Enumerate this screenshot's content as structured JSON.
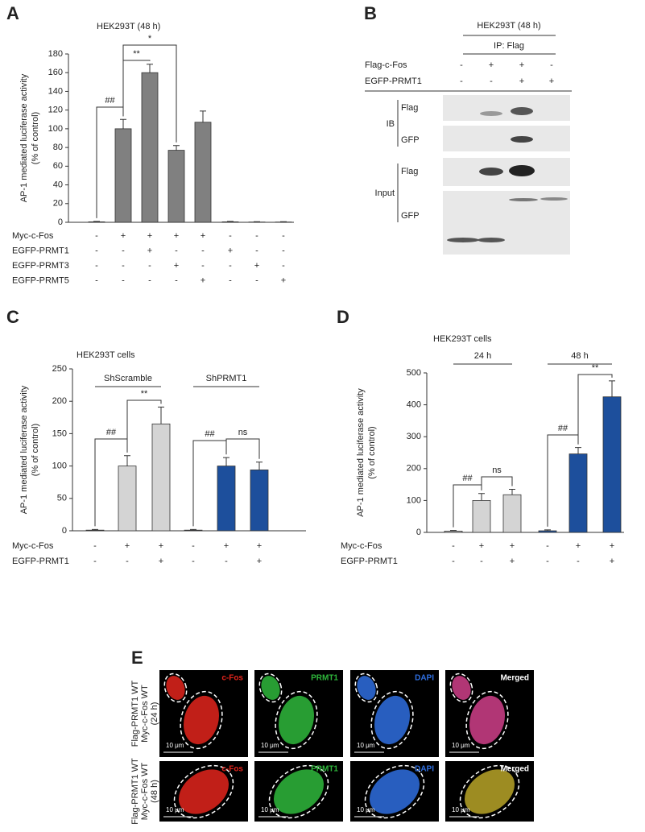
{
  "panel_labels": [
    "A",
    "B",
    "C",
    "D",
    "E"
  ],
  "chart_data": [
    {
      "type": "bar",
      "title": "HEK293T (48 h)",
      "y_label": [
        "AP-1 mediated luciferase activity",
        "(% of control)"
      ],
      "values": [
        0.5,
        100,
        160,
        77,
        107,
        0.5,
        0.3,
        0.3
      ],
      "errors": [
        0.5,
        10,
        9,
        5,
        12,
        0.5,
        0.3,
        0.3
      ],
      "colors": [
        "#808080",
        "#808080",
        "#808080",
        "#808080",
        "#808080",
        "#808080",
        "#808080",
        "#808080"
      ],
      "ylim": [
        0,
        180
      ],
      "yticks": [
        0,
        20,
        40,
        60,
        80,
        100,
        120,
        140,
        160,
        180
      ],
      "treatments": [
        {
          "name": "Myc-c-Fos",
          "signs": [
            "-",
            "+",
            "+",
            "+",
            "+",
            "-",
            "-",
            "-"
          ]
        },
        {
          "name": "EGFP-PRMT1",
          "signs": [
            "-",
            "-",
            "+",
            "-",
            "-",
            "+",
            "-",
            "-"
          ]
        },
        {
          "name": "EGFP-PRMT3",
          "signs": [
            "-",
            "-",
            "-",
            "+",
            "-",
            "-",
            "+",
            "-"
          ]
        },
        {
          "name": "EGFP-PRMT5",
          "signs": [
            "-",
            "-",
            "-",
            "-",
            "+",
            "-",
            "-",
            "+"
          ]
        }
      ],
      "annotations": [
        "##",
        "**",
        "*"
      ],
      "groups": []
    },
    {
      "type": "bar",
      "title": "HEK293T cells",
      "y_label": [
        "AP-1 mediated luciferase activity",
        "(% of control)"
      ],
      "values": [
        1,
        100,
        165,
        1,
        100,
        94
      ],
      "errors": [
        1,
        16,
        26,
        1,
        13,
        12
      ],
      "colors": [
        "#d4d4d4",
        "#d4d4d4",
        "#d4d4d4",
        "#1d4f9c",
        "#1d4f9c",
        "#1d4f9c"
      ],
      "ylim": [
        0,
        250
      ],
      "yticks": [
        0,
        50,
        100,
        150,
        200,
        250
      ],
      "treatments": [
        {
          "name": "Myc-c-Fos",
          "signs": [
            "-",
            "+",
            "+",
            "-",
            "+",
            "+"
          ]
        },
        {
          "name": "EGFP-PRMT1",
          "signs": [
            "-",
            "-",
            "+",
            "-",
            "-",
            "+"
          ]
        }
      ],
      "annotations": [
        "##",
        "**",
        "##",
        "ns"
      ],
      "groups": [
        "ShScramble",
        "ShPRMT1"
      ]
    },
    {
      "type": "bar",
      "title": "HEK293T cells",
      "y_label": [
        "AP-1 mediated luciferase activity",
        "(% of control)"
      ],
      "values": [
        4,
        100,
        118,
        5,
        246,
        425
      ],
      "errors": [
        2,
        22,
        17,
        3,
        20,
        50
      ],
      "colors": [
        "#d4d4d4",
        "#d4d4d4",
        "#d4d4d4",
        "#1d4f9c",
        "#1d4f9c",
        "#1d4f9c"
      ],
      "ylim": [
        0,
        500
      ],
      "yticks": [
        0,
        100,
        200,
        300,
        400,
        500
      ],
      "treatments": [
        {
          "name": "Myc-c-Fos",
          "signs": [
            "-",
            "+",
            "+",
            "-",
            "+",
            "+"
          ]
        },
        {
          "name": "EGFP-PRMT1",
          "signs": [
            "-",
            "-",
            "+",
            "-",
            "-",
            "+"
          ]
        }
      ],
      "annotations": [
        "##",
        "ns",
        "##",
        "**"
      ],
      "groups": [
        "24 h",
        "48 h"
      ]
    }
  ],
  "blot": {
    "title": "HEK293T (48 h)",
    "ip": "IP: Flag",
    "treatments": [
      {
        "name": "Flag-c-Fos",
        "signs": [
          "-",
          "+",
          "+",
          "-"
        ]
      },
      {
        "name": "EGFP-PRMT1",
        "signs": [
          "-",
          "-",
          "+",
          "+"
        ]
      }
    ],
    "sections": [
      {
        "name": "IB",
        "rows": [
          "Flag",
          "GFP"
        ]
      },
      {
        "name": "Input",
        "rows": [
          "Flag",
          "GFP"
        ]
      }
    ]
  },
  "microscopy": {
    "channels": [
      {
        "name": "c-Fos",
        "color": "#e3241c"
      },
      {
        "name": "PRMT1",
        "color": "#2fb83c"
      },
      {
        "name": "DAPI",
        "color": "#2f6fe0"
      },
      {
        "name": "Merged",
        "color": "#ffffff"
      }
    ],
    "rows": [
      [
        "Flag-PRMT1 WT",
        "Myc-c-Fos WT",
        "(24 h)"
      ],
      [
        "Flag-PRMT1 WT",
        "Myc-c-Fos WT",
        "(48 h)"
      ]
    ],
    "scale_bar": "10 μm"
  }
}
